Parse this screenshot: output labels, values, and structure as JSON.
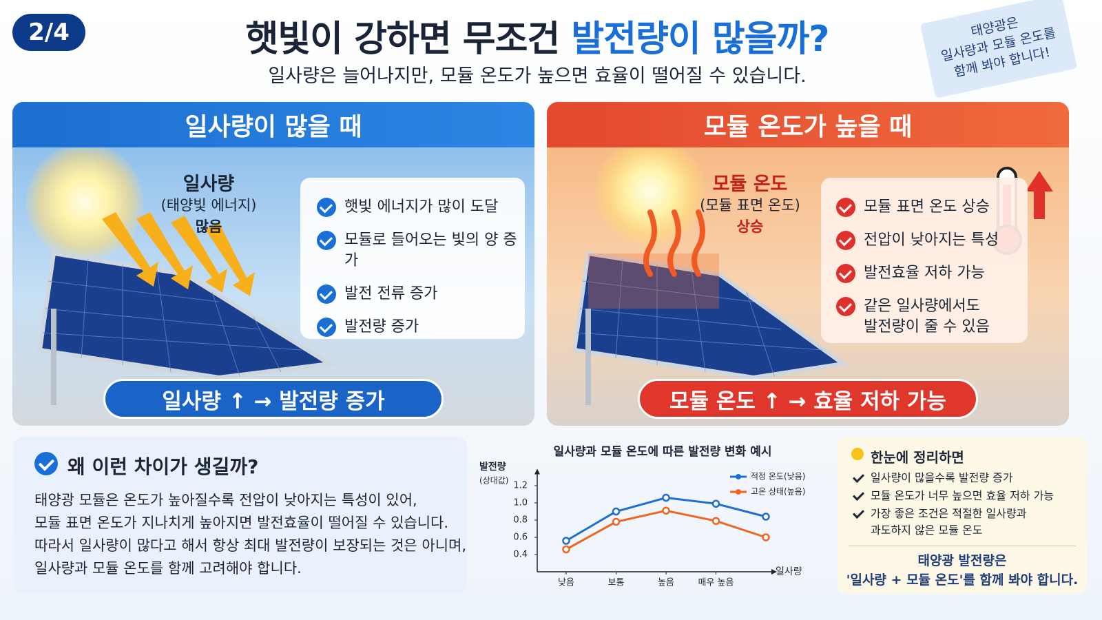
{
  "header": {
    "badge": "2/4",
    "title": "햇빛이 강하면 무조건 ",
    "title_highlight": "발전량이 많을까?",
    "subtitle": "일사량은 늘어나지만, 모듈 온도가 높으면 효율이 떨어질 수 있습니다.",
    "note": [
      "태양광은",
      "일사량과 모듈 온도를",
      "함께 봐야 합니다!"
    ]
  },
  "left_panel": {
    "title": "일사량이 많을 때",
    "label_title": "일사량",
    "label_sub": "(태양빛 에너지)",
    "label_state": "많음",
    "items": [
      "햇빛 에너지가 많이 도달",
      "모듈로 들어오는 빛의 양 증가",
      "발전 전류 증가",
      "발전량 증가"
    ],
    "banner": "일사량 ↑ → 발전량 증가"
  },
  "right_panel": {
    "title": "모듈 온도가 높을 때",
    "label_title": "모듈 온도",
    "label_sub": "(모듈 표면 온도)",
    "label_state": "상승",
    "items": [
      "모듈 표면 온도 상승",
      "전압이 낮아지는 특성",
      "발전효율 저하 가능",
      "같은 일사량에서도\n발전량이 줄 수 있음"
    ],
    "banner": "모듈 온도 ↑ → 효율 저하 가능"
  },
  "explanation": {
    "title": "왜 이런 차이가 생길까?",
    "lines": [
      "태양광 모듈은 온도가 높아질수록 전압이 낮아지는 특성이 있어,",
      "모듈 표면 온도가 지나치게 높아지면 발전효율이 떨어질 수 있습니다.",
      "따라서 일사량이 많다고 해서 항상 최대 발전량이 보장되는 것은 아니며,",
      "일사량과 모듈 온도를 함께 고려해야 합니다."
    ]
  },
  "chart_data": {
    "type": "line",
    "title": "일사량과 모듈 온도에 따른 발전량 변화 예시",
    "y_label": "발전량",
    "y_label_sub": "(상대값)",
    "x_label": "일사량",
    "categories": [
      "낮음",
      "보통",
      "높음",
      "매우 높음",
      null
    ],
    "series": [
      {
        "name": "적정 온도(낮음)",
        "color": "#1f6fd1",
        "values": [
          0.56,
          0.9,
          1.06,
          0.99,
          0.84
        ]
      },
      {
        "name": "고온 상태(높음)",
        "color": "#f06522",
        "values": [
          0.46,
          0.78,
          0.91,
          0.79,
          0.6
        ]
      }
    ],
    "ylim": [
      0.2,
      1.3
    ],
    "yticks": [
      0.4,
      0.6,
      0.8,
      {
        "value": 1,
        "label": "1.0"
      },
      1.2
    ],
    "legend": "upper right"
  },
  "summary": {
    "title": "한눈에 정리하면",
    "items": [
      "일사량이 많을수록 발전량 증가",
      "모듈 온도가 너무 높으면 효율 저하 가능",
      "가장 좋은 조건은 적절한 일사량과\n과도하지 않은 모듈 온도"
    ],
    "conclusion": [
      "태양광 발전량은",
      "'일사량 + 모듈 온도'를 함께 봐야 합니다."
    ]
  }
}
